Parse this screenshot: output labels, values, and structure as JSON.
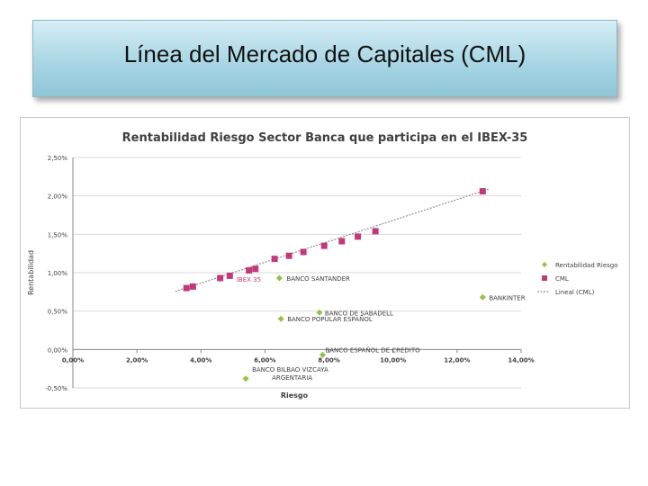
{
  "slide": {
    "title": "Línea del Mercado de Capitales (CML)"
  },
  "chart_data": {
    "type": "scatter",
    "title": "Rentabilidad Riesgo Sector Banca que participa en el IBEX-35",
    "xlabel": "Riesgo",
    "ylabel": "Rentabilidad",
    "xlim": [
      0,
      14
    ],
    "ylim": [
      -0.5,
      2.5
    ],
    "x_unit": "%",
    "y_unit": "%",
    "x_ticks": [
      "0,00%",
      "2,00%",
      "4,00%",
      "6,00%",
      "8,00%",
      "10,00%",
      "12,00%",
      "14,00%"
    ],
    "y_ticks": [
      "-0,50%",
      "0,00%",
      "0,50%",
      "1,00%",
      "1,50%",
      "2,00%",
      "2,50%"
    ],
    "legend_position": "right",
    "colors": {
      "rentabilidad": "#8fc34a",
      "cml": "#c2397a",
      "lineal": "#909090"
    },
    "series": [
      {
        "name": "Rentabilidad Riesgo",
        "points": [
          {
            "x": 6.45,
            "y": 0.93,
            "label": "BANCO SANTANDER"
          },
          {
            "x": 7.7,
            "y": 0.48,
            "label": "BANCO DE SABADELL"
          },
          {
            "x": 6.5,
            "y": 0.4,
            "label": "BANCO POPULAR ESPAÑOL"
          },
          {
            "x": 12.8,
            "y": 0.68,
            "label": "BANKINTER"
          },
          {
            "x": 7.8,
            "y": -0.07,
            "label": "BANCO ESPAÑOL DE CREDITO"
          },
          {
            "x": 5.4,
            "y": -0.38,
            "label": "BANCO BILBAO VIZCAYA ARGENTARIA"
          }
        ]
      },
      {
        "name": "CML",
        "points": [
          {
            "x": 3.55,
            "y": 0.8
          },
          {
            "x": 3.75,
            "y": 0.82
          },
          {
            "x": 4.6,
            "y": 0.93
          },
          {
            "x": 4.9,
            "y": 0.96
          },
          {
            "x": 5.5,
            "y": 1.03
          },
          {
            "x": 5.7,
            "y": 1.05
          },
          {
            "x": 6.3,
            "y": 1.18
          },
          {
            "x": 6.75,
            "y": 1.22
          },
          {
            "x": 7.2,
            "y": 1.27
          },
          {
            "x": 7.85,
            "y": 1.35
          },
          {
            "x": 8.4,
            "y": 1.41
          },
          {
            "x": 8.9,
            "y": 1.47
          },
          {
            "x": 9.45,
            "y": 1.54
          },
          {
            "x": 12.8,
            "y": 2.06
          }
        ]
      },
      {
        "name": "Lineal (CML)",
        "line": {
          "x": [
            3.2,
            13.0
          ],
          "y": [
            0.755,
            2.09
          ]
        }
      }
    ],
    "annotations": [
      {
        "text": "IBEX 35",
        "x": 5.0,
        "y": 0.92
      }
    ]
  }
}
